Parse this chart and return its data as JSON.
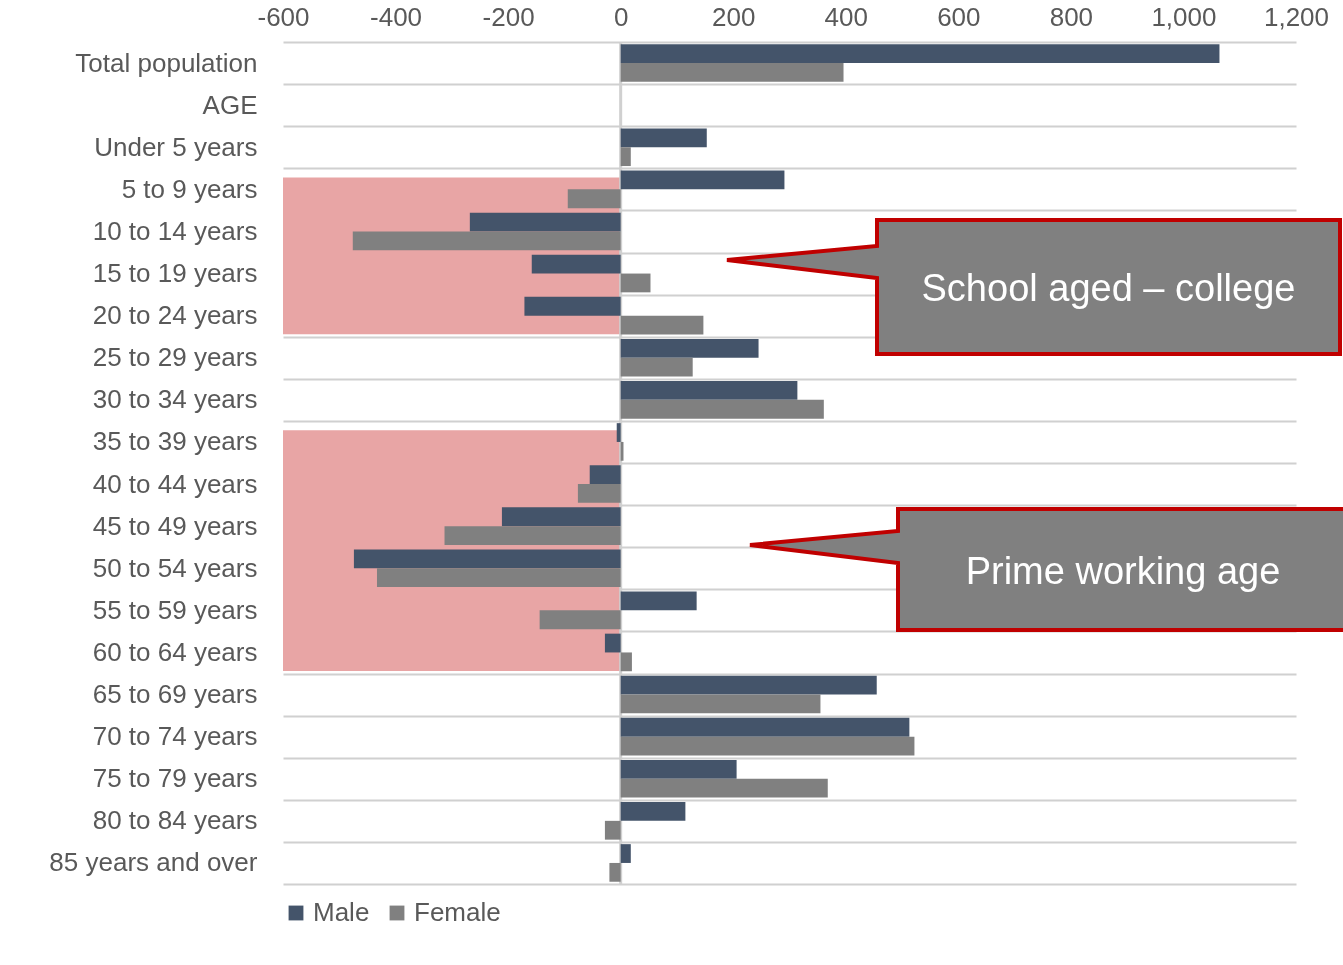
{
  "chart_data": {
    "type": "bar",
    "orientation": "horizontal",
    "categories": [
      "Total population",
      "AGE",
      "Under 5 years",
      "5 to 9 years",
      "10 to 14 years",
      "15 to 19 years",
      "20 to 24 years",
      "25 to 29 years",
      "30 to 34 years",
      "35 to 39 years",
      "40 to 44 years",
      "45 to 49 years",
      "50 to 54 years",
      "55 to 59 years",
      "60 to 64 years",
      "65 to 69 years",
      "70 to 74 years",
      "75 to 79 years",
      "80 to 84 years",
      "85 years and over"
    ],
    "series": [
      {
        "name": "Male",
        "color": "#44546a",
        "values": [
          1064,
          null,
          153,
          291,
          -268,
          -158,
          -171,
          245,
          314,
          -7,
          -55,
          -211,
          -474,
          135,
          -28,
          455,
          513,
          206,
          115,
          18
        ]
      },
      {
        "name": "Female",
        "color": "#808080",
        "values": [
          396,
          null,
          18,
          -94,
          -476,
          53,
          147,
          128,
          361,
          5,
          -76,
          -313,
          -433,
          -144,
          20,
          355,
          522,
          368,
          -28,
          -20
        ]
      }
    ],
    "xlim": [
      -600,
      1200
    ],
    "xticks": [
      -600,
      -400,
      -200,
      0,
      200,
      400,
      600,
      800,
      {
        "value": 1000,
        "label": "1,000"
      },
      {
        "value": 1200,
        "label": "1,200"
      }
    ],
    "grid": "y",
    "legend": "bottom",
    "bands": [
      {
        "axis": "y",
        "from": "5 to 9 years",
        "to": "20 to 24 years",
        "color": "#e8a5a5"
      },
      {
        "axis": "y",
        "from": "35 to 39 years",
        "to": "60 to 64 years",
        "color": "#e8a5a5"
      }
    ],
    "annotations": [
      "School aged – college",
      "Prime working age"
    ]
  }
}
